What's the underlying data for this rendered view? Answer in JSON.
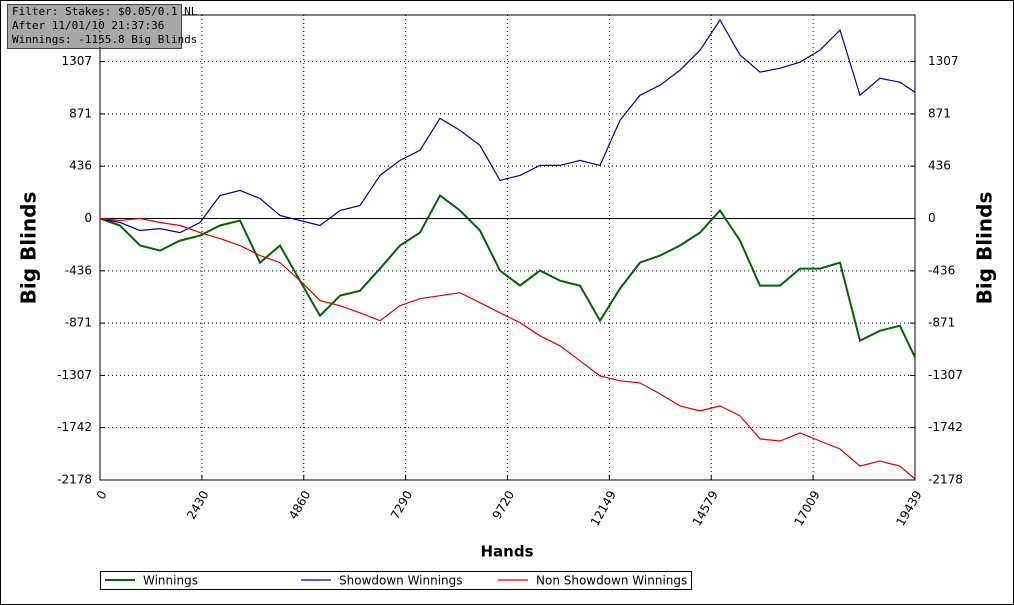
{
  "chart_data": {
    "type": "line",
    "annotations": [
      "Filter: Stakes: $0.05/0.1 NL",
      "After 11/01/10 21:37:36",
      "Winnings: -1155.8 Big Blinds"
    ],
    "x_label": "Hands",
    "y_label": "Big Blinds",
    "y2_label": "Big Blinds",
    "x": [
      0,
      477,
      954,
      1431,
      1908,
      2385,
      2862,
      3339,
      3816,
      4293,
      4770,
      5247,
      5724,
      6201,
      6678,
      7155,
      7632,
      8109,
      8586,
      9063,
      9540,
      10017,
      10494,
      10971,
      11448,
      11925,
      12402,
      12879,
      13356,
      13833,
      14310,
      14787,
      15264,
      15741,
      16218,
      16695,
      17172,
      17649,
      18126,
      18603,
      19080,
      19439
    ],
    "series": [
      {
        "name": "Winnings",
        "color": "#006400",
        "values": [
          0,
          -58,
          -225,
          -267,
          -184,
          -142,
          -58,
          -17,
          -367,
          -225,
          -518,
          -810,
          -643,
          -601,
          -417,
          -225,
          -117,
          192,
          67,
          -100,
          -434,
          -559,
          -434,
          -518,
          -559,
          -851,
          -584,
          -367,
          -309,
          -225,
          -117,
          67,
          -184,
          -559,
          -559,
          -417,
          -417,
          -367,
          -1018,
          -935,
          -893,
          -1156
        ]
      },
      {
        "name": "Showdown Winnings",
        "color": "#0000a0",
        "values": [
          0,
          -33,
          -100,
          -84,
          -117,
          -33,
          192,
          234,
          167,
          25,
          -17,
          -58,
          67,
          108,
          359,
          484,
          568,
          835,
          734,
          609,
          317,
          359,
          442,
          442,
          484,
          442,
          818,
          1027,
          1110,
          1235,
          1402,
          1653,
          1361,
          1219,
          1252,
          1302,
          1402,
          1569,
          1027,
          1168,
          1135,
          1052
        ]
      },
      {
        "name": "Non Showdown Winnings",
        "color": "#dd0000",
        "values": [
          0,
          -17,
          0,
          -33,
          -58,
          -117,
          -167,
          -225,
          -309,
          -367,
          -518,
          -684,
          -726,
          -785,
          -851,
          -726,
          -668,
          -643,
          -618,
          -701,
          -785,
          -868,
          -977,
          -1060,
          -1185,
          -1311,
          -1352,
          -1369,
          -1461,
          -1561,
          -1603,
          -1561,
          -1644,
          -1836,
          -1853,
          -1786,
          -1853,
          -1920,
          -2062,
          -2020,
          -2062,
          -2170
        ]
      }
    ],
    "xlim": [
      0,
      19439
    ],
    "xticks": [
      0,
      2430,
      4860,
      7290,
      9720,
      12149,
      14579,
      17009,
      19439
    ],
    "ylim": [
      -2178,
      1695
    ],
    "yticks": [
      -2178,
      -1742,
      -1307,
      -871,
      -436,
      0,
      436,
      871,
      1307
    ],
    "grid": true,
    "zero_line": true
  }
}
